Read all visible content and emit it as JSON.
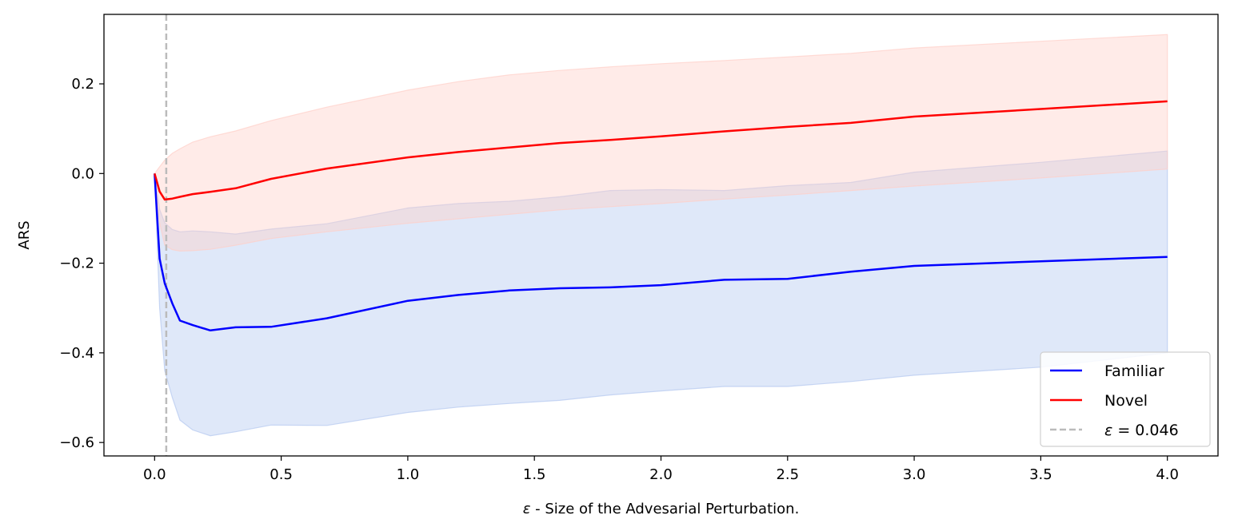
{
  "chart_data": {
    "type": "line",
    "title": "",
    "xlabel": "ε - Size of the Advesarial Perturbation.",
    "ylabel": "ARS",
    "xlim": [
      -0.2,
      4.2
    ],
    "ylim": [
      -0.63,
      0.355
    ],
    "xticks": [
      0.0,
      0.5,
      1.0,
      1.5,
      2.0,
      2.5,
      3.0,
      3.5,
      4.0
    ],
    "xtick_labels": [
      "0.0",
      "0.5",
      "1.0",
      "1.5",
      "2.0",
      "2.5",
      "3.0",
      "3.5",
      "4.0"
    ],
    "yticks": [
      -0.6,
      -0.4,
      -0.2,
      0.0,
      0.2
    ],
    "ytick_labels": [
      "−0.6",
      "−0.4",
      "−0.2",
      "0.0",
      "0.2"
    ],
    "grid": false,
    "legend_position": "bottom-right",
    "series": [
      {
        "name": "Familiar",
        "color": "#0000ff",
        "band_color": "#b3c8f0",
        "x": [
          0.0,
          0.02,
          0.04,
          0.07,
          0.1,
          0.15,
          0.22,
          0.32,
          0.46,
          0.68,
          1.0,
          1.2,
          1.4,
          1.6,
          1.8,
          2.0,
          2.25,
          2.5,
          2.75,
          3.0,
          3.5,
          4.0
        ],
        "y": [
          0.0,
          -0.19,
          -0.245,
          -0.29,
          -0.328,
          -0.338,
          -0.35,
          -0.343,
          -0.342,
          -0.323,
          -0.284,
          -0.271,
          -0.261,
          -0.256,
          -0.254,
          -0.249,
          -0.237,
          -0.235,
          -0.219,
          -0.206,
          -0.196,
          -0.186
        ],
        "lower": [
          0.0,
          -0.3,
          -0.44,
          -0.5,
          -0.55,
          -0.572,
          -0.585,
          -0.576,
          -0.561,
          -0.562,
          -0.533,
          -0.521,
          -0.513,
          -0.506,
          -0.494,
          -0.485,
          -0.475,
          -0.475,
          -0.464,
          -0.45,
          -0.432,
          -0.4
        ],
        "upper": [
          0.0,
          -0.08,
          -0.11,
          -0.125,
          -0.13,
          -0.128,
          -0.13,
          -0.135,
          -0.124,
          -0.112,
          -0.077,
          -0.067,
          -0.062,
          -0.052,
          -0.038,
          -0.036,
          -0.038,
          -0.027,
          -0.02,
          0.003,
          0.025,
          0.05
        ]
      },
      {
        "name": "Novel",
        "color": "#ff0000",
        "band_color": "#ffcfc7",
        "x": [
          0.0,
          0.02,
          0.04,
          0.07,
          0.1,
          0.15,
          0.22,
          0.32,
          0.46,
          0.68,
          1.0,
          1.2,
          1.4,
          1.6,
          1.8,
          2.0,
          2.25,
          2.5,
          2.75,
          3.0,
          3.5,
          4.0
        ],
        "y": [
          0.0,
          -0.04,
          -0.058,
          -0.056,
          -0.052,
          -0.046,
          -0.041,
          -0.033,
          -0.012,
          0.011,
          0.036,
          0.048,
          0.058,
          0.068,
          0.075,
          0.083,
          0.094,
          0.104,
          0.113,
          0.127,
          0.144,
          0.161
        ],
        "lower": [
          0.0,
          -0.11,
          -0.16,
          -0.17,
          -0.173,
          -0.172,
          -0.169,
          -0.16,
          -0.145,
          -0.13,
          -0.111,
          -0.101,
          -0.091,
          -0.081,
          -0.074,
          -0.067,
          -0.057,
          -0.048,
          -0.038,
          -0.028,
          -0.01,
          0.01
        ],
        "upper": [
          0.0,
          0.015,
          0.03,
          0.045,
          0.055,
          0.07,
          0.082,
          0.095,
          0.118,
          0.148,
          0.186,
          0.205,
          0.22,
          0.23,
          0.238,
          0.245,
          0.252,
          0.26,
          0.268,
          0.28,
          0.295,
          0.31
        ]
      }
    ],
    "threshold": {
      "name": "ε = 0.046",
      "legend_symbol": "ε",
      "legend_rest": " = 0.046",
      "x": 0.046,
      "color": "#bbbbbb"
    }
  }
}
